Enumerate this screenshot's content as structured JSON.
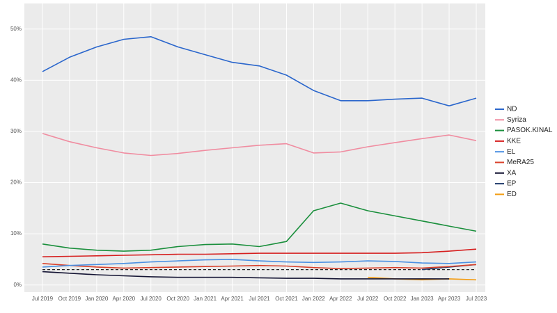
{
  "chart_data": {
    "type": "line",
    "x": [
      "2019-07",
      "2019-10",
      "2020-01",
      "2020-04",
      "2020-07",
      "2020-10",
      "2021-01",
      "2021-04",
      "2021-07",
      "2021-10",
      "2022-01",
      "2022-04",
      "2022-07",
      "2022-10",
      "2023-01",
      "2023-04",
      "2023-07"
    ],
    "series": [
      {
        "name": "ND",
        "color": "#2a66cc",
        "values": [
          41.7,
          44.5,
          46.5,
          48,
          48.5,
          46.5,
          45,
          43.5,
          42.8,
          41,
          38,
          36,
          36,
          36.3,
          36.5,
          35,
          36.5
        ]
      },
      {
        "name": "Syriza",
        "color": "#f08ca0",
        "values": [
          29.6,
          28,
          26.8,
          25.8,
          25.3,
          25.7,
          26.3,
          26.8,
          27.3,
          27.6,
          25.8,
          26,
          27,
          27.8,
          28.6,
          29.3,
          28.2
        ]
      },
      {
        "name": "PASOK.KINAL",
        "color": "#1a8f3c",
        "values": [
          8,
          7.2,
          6.8,
          6.6,
          6.8,
          7.5,
          7.9,
          8,
          7.5,
          8.5,
          14.5,
          16,
          14.5,
          13.5,
          12.5,
          11.5,
          10.5
        ]
      },
      {
        "name": "KKE",
        "color": "#d61f1f",
        "values": [
          5.5,
          5.6,
          5.7,
          5.8,
          5.9,
          6,
          6,
          6.1,
          6.2,
          6.2,
          6.2,
          6.2,
          6.2,
          6.2,
          6.3,
          6.6,
          7
        ]
      },
      {
        "name": "EL",
        "color": "#4a90e2",
        "values": [
          3.5,
          3.8,
          4,
          4.2,
          4.5,
          4.7,
          4.9,
          5,
          4.7,
          4.5,
          4.4,
          4.5,
          4.7,
          4.6,
          4.3,
          4.2,
          4.5
        ]
      },
      {
        "name": "MeRA25",
        "color": "#d9402a",
        "values": [
          4.2,
          3.8,
          3.5,
          3.3,
          3.4,
          3.5,
          3.6,
          3.7,
          3.8,
          3.7,
          3.4,
          3.2,
          3.3,
          3.4,
          3.3,
          3.6,
          4
        ]
      },
      {
        "name": "XA",
        "color": "#141433",
        "values": [
          2.6,
          2.3,
          2,
          1.8,
          1.6,
          1.5,
          1.5,
          1.5,
          1.4,
          1.3,
          1.3,
          1.2,
          1.2,
          1.2,
          1.2,
          1.2,
          null
        ]
      },
      {
        "name": "EP",
        "color": "#1f3a6b",
        "values": [
          null,
          null,
          null,
          null,
          null,
          null,
          null,
          null,
          null,
          null,
          null,
          null,
          null,
          null,
          3,
          3.5,
          4
        ]
      },
      {
        "name": "ED",
        "color": "#f39c12",
        "values": [
          null,
          null,
          null,
          null,
          null,
          null,
          null,
          null,
          null,
          null,
          null,
          null,
          1.5,
          1.2,
          1,
          1.2,
          1
        ]
      }
    ],
    "reference_line": 3,
    "xlim": [
      "2019-05",
      "2023-08"
    ],
    "xticks": [
      {
        "value": "2019-07",
        "label": "Jul 2019"
      },
      {
        "value": "2019-10",
        "label": "Oct 2019"
      },
      {
        "value": "2020-01",
        "label": "Jan 2020"
      },
      {
        "value": "2020-04",
        "label": "Apr 2020"
      },
      {
        "value": "2020-07",
        "label": "Jul 2020"
      },
      {
        "value": "2020-10",
        "label": "Oct 2020"
      },
      {
        "value": "2021-01",
        "label": "Jan 2021"
      },
      {
        "value": "2021-04",
        "label": "Apr 2021"
      },
      {
        "value": "2021-07",
        "label": "Jul 2021"
      },
      {
        "value": "2021-10",
        "label": "Oct 2021"
      },
      {
        "value": "2022-01",
        "label": "Jan 2022"
      },
      {
        "value": "2022-04",
        "label": "Apr 2022"
      },
      {
        "value": "2022-07",
        "label": "Jul 2022"
      },
      {
        "value": "2022-10",
        "label": "Oct 2022"
      },
      {
        "value": "2023-01",
        "label": "Jan 2023"
      },
      {
        "value": "2023-04",
        "label": "Apr 2023"
      },
      {
        "value": "2023-07",
        "label": "Jul 2023"
      }
    ],
    "ylim": [
      -1.4,
      55
    ],
    "yticks": [
      {
        "value": 0,
        "label": "0%"
      },
      {
        "value": 10,
        "label": "10%"
      },
      {
        "value": 20,
        "label": "20%"
      },
      {
        "value": 30,
        "label": "30%"
      },
      {
        "value": 40,
        "label": "40%"
      },
      {
        "value": 50,
        "label": "50%"
      }
    ],
    "grid": true
  }
}
